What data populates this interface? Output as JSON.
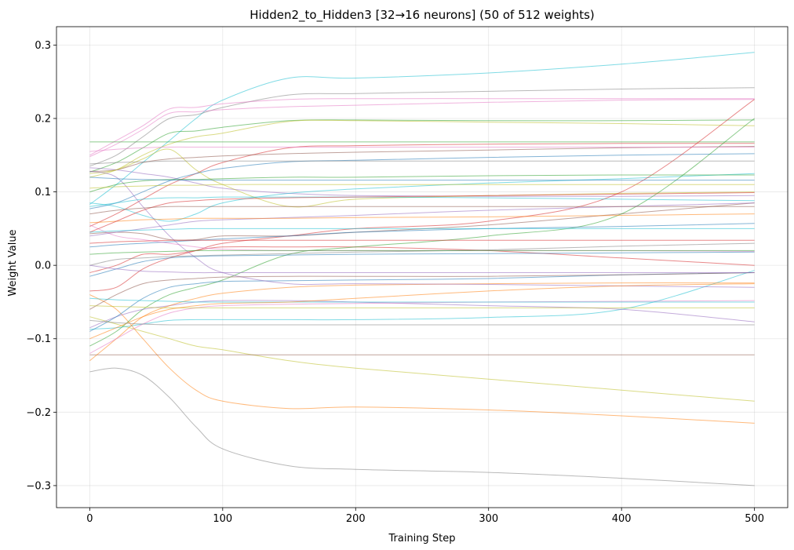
{
  "chart_data": {
    "type": "line",
    "title": "Hidden2_to_Hidden3 [32→16 neurons] (50 of 512 weights)",
    "xlabel": "Training Step",
    "ylabel": "Weight Value",
    "xlim": [
      -25,
      525
    ],
    "ylim": [
      -0.33,
      0.325
    ],
    "xticks": [
      0,
      100,
      200,
      300,
      400,
      500
    ],
    "xtick_labels": [
      "0",
      "100",
      "200",
      "300",
      "400",
      "500"
    ],
    "yticks": [
      -0.3,
      -0.2,
      -0.1,
      0.0,
      0.1,
      0.2,
      0.3
    ],
    "ytick_labels": [
      "−0.3",
      "−0.2",
      "−0.1",
      "0.0",
      "0.1",
      "0.2",
      "0.3"
    ],
    "grid": true,
    "x": [
      0,
      20,
      40,
      60,
      80,
      100,
      150,
      200,
      300,
      400,
      500
    ],
    "series": [
      {
        "color": "#17becf",
        "values": [
          0.083,
          0.11,
          0.14,
          0.17,
          0.2,
          0.225,
          0.255,
          0.255,
          0.262,
          0.274,
          0.29
        ]
      },
      {
        "color": "#7f7f7f",
        "values": [
          0.135,
          0.15,
          0.175,
          0.2,
          0.205,
          0.215,
          0.232,
          0.234,
          0.237,
          0.24,
          0.242
        ]
      },
      {
        "color": "#e377c2",
        "values": [
          0.15,
          0.17,
          0.19,
          0.213,
          0.215,
          0.22,
          0.226,
          0.227,
          0.227,
          0.227,
          0.227
        ]
      },
      {
        "color": "#e377c2",
        "values": [
          0.148,
          0.165,
          0.185,
          0.207,
          0.209,
          0.212,
          0.216,
          0.218,
          0.222,
          0.225,
          0.226
        ]
      },
      {
        "color": "#2ca02c",
        "values": [
          0.127,
          0.14,
          0.16,
          0.18,
          0.183,
          0.188,
          0.197,
          0.198,
          0.197,
          0.197,
          0.198
        ]
      },
      {
        "color": "#bcbd22",
        "values": [
          0.12,
          0.13,
          0.15,
          0.165,
          0.175,
          0.18,
          0.196,
          0.197,
          0.195,
          0.193,
          0.19
        ]
      },
      {
        "color": "#2ca02c",
        "values": [
          0.168,
          0.168,
          0.168,
          0.168,
          0.168,
          0.168,
          0.168,
          0.168,
          0.168,
          0.168,
          0.168
        ]
      },
      {
        "color": "#d62728",
        "values": [
          0.053,
          0.07,
          0.09,
          0.11,
          0.125,
          0.14,
          0.16,
          0.163,
          0.165,
          0.166,
          0.166
        ]
      },
      {
        "color": "#8c564b",
        "values": [
          0.128,
          0.13,
          0.14,
          0.145,
          0.147,
          0.149,
          0.152,
          0.154,
          0.157,
          0.16,
          0.162
        ]
      },
      {
        "color": "#1f77b4",
        "values": [
          0.077,
          0.085,
          0.1,
          0.115,
          0.125,
          0.132,
          0.141,
          0.143,
          0.147,
          0.15,
          0.152
        ]
      },
      {
        "color": "#9467bd",
        "values": [
          0.133,
          0.13,
          0.125,
          0.12,
          0.112,
          0.105,
          0.098,
          0.095,
          0.094,
          0.094,
          0.095
        ]
      },
      {
        "color": "#17becf",
        "values": [
          0.085,
          0.08,
          0.068,
          0.06,
          0.07,
          0.085,
          0.098,
          0.104,
          0.112,
          0.118,
          0.125
        ]
      },
      {
        "color": "#bcbd22",
        "values": [
          0.125,
          0.13,
          0.145,
          0.158,
          0.13,
          0.11,
          0.08,
          0.09,
          0.095,
          0.098,
          0.1
        ]
      },
      {
        "color": "#d62728",
        "values": [
          -0.01,
          0.0,
          0.015,
          0.015,
          0.02,
          0.025,
          0.025,
          0.025,
          0.02,
          0.01,
          0.0
        ]
      },
      {
        "color": "#8c564b",
        "values": [
          0.043,
          0.045,
          0.043,
          0.035,
          0.035,
          0.04,
          0.04,
          0.045,
          0.055,
          0.07,
          0.085
        ]
      },
      {
        "color": "#ff7f0e",
        "values": [
          -0.04,
          -0.06,
          -0.1,
          -0.14,
          -0.17,
          -0.185,
          -0.195,
          -0.193,
          -0.197,
          -0.205,
          -0.215
        ]
      },
      {
        "color": "#7f7f7f",
        "values": [
          -0.145,
          -0.14,
          -0.15,
          -0.18,
          -0.22,
          -0.25,
          -0.273,
          -0.278,
          -0.282,
          -0.29,
          -0.3
        ]
      },
      {
        "color": "#bcbd22",
        "values": [
          -0.07,
          -0.08,
          -0.09,
          -0.1,
          -0.11,
          -0.115,
          -0.13,
          -0.14,
          -0.155,
          -0.17,
          -0.185
        ]
      },
      {
        "color": "#8c564b",
        "values": [
          -0.122,
          -0.122,
          -0.122,
          -0.122,
          -0.122,
          -0.122,
          -0.122,
          -0.122,
          -0.122,
          -0.122,
          -0.122
        ]
      },
      {
        "color": "#d62728",
        "values": [
          -0.035,
          -0.03,
          -0.005,
          0.01,
          0.02,
          0.03,
          0.04,
          0.05,
          0.06,
          0.1,
          0.226
        ]
      },
      {
        "color": "#17becf",
        "values": [
          -0.087,
          -0.085,
          -0.08,
          -0.075,
          -0.074,
          -0.074,
          -0.074,
          -0.074,
          -0.071,
          -0.06,
          -0.007
        ]
      },
      {
        "color": "#2ca02c",
        "values": [
          -0.11,
          -0.09,
          -0.06,
          -0.04,
          -0.03,
          -0.02,
          0.015,
          0.025,
          0.04,
          0.07,
          0.2
        ]
      },
      {
        "color": "#9467bd",
        "values": [
          -0.085,
          -0.07,
          -0.06,
          -0.055,
          -0.05,
          -0.048,
          -0.048,
          -0.05,
          -0.055,
          -0.06,
          -0.077
        ]
      },
      {
        "color": "#ff7f0e",
        "values": [
          -0.13,
          -0.1,
          -0.07,
          -0.055,
          -0.045,
          -0.038,
          -0.03,
          -0.027,
          -0.025,
          -0.024,
          -0.024
        ]
      },
      {
        "color": "#1f77b4",
        "values": [
          -0.09,
          -0.07,
          -0.045,
          -0.03,
          -0.025,
          -0.022,
          -0.021,
          -0.02,
          -0.018,
          -0.013,
          -0.01
        ]
      },
      {
        "color": "#1f77b4",
        "values": [
          0.025,
          0.028,
          0.03,
          0.032,
          0.034,
          0.036,
          0.04,
          0.045,
          0.05,
          0.053,
          0.057
        ]
      },
      {
        "color": "#e377c2",
        "values": [
          0.055,
          0.04,
          0.035,
          0.03,
          0.025,
          0.022,
          0.02,
          0.02,
          0.02,
          0.02,
          0.019
        ]
      },
      {
        "color": "#7f7f7f",
        "values": [
          0.0,
          0.008,
          0.01,
          0.012,
          0.013,
          0.014,
          0.016,
          0.018,
          0.021,
          0.026,
          0.03
        ]
      },
      {
        "color": "#9467bd",
        "values": [
          0.128,
          0.12,
          0.08,
          0.04,
          0.01,
          -0.01,
          -0.025,
          -0.025,
          -0.026,
          -0.028,
          -0.03
        ]
      },
      {
        "color": "#9467bd",
        "values": [
          0.04,
          0.045,
          0.05,
          0.055,
          0.06,
          0.062,
          0.065,
          0.068,
          0.075,
          0.08,
          0.085
        ]
      },
      {
        "color": "#ff7f0e",
        "values": [
          0.058,
          0.06,
          0.062,
          0.063,
          0.064,
          0.064,
          0.064,
          0.065,
          0.066,
          0.068,
          0.07
        ]
      },
      {
        "color": "#17becf",
        "values": [
          0.08,
          0.085,
          0.09,
          0.092,
          0.092,
          0.093,
          0.093,
          0.093,
          0.092,
          0.09,
          0.088
        ]
      },
      {
        "color": "#2ca02c",
        "values": [
          0.1,
          0.11,
          0.115,
          0.117,
          0.117,
          0.118,
          0.12,
          0.12,
          0.122,
          0.123,
          0.123
        ]
      },
      {
        "color": "#bcbd22",
        "values": [
          0.105,
          0.107,
          0.108,
          0.109,
          0.109,
          0.11,
          0.11,
          0.11,
          0.11,
          0.11,
          0.11
        ]
      },
      {
        "color": "#d62728",
        "values": [
          0.045,
          0.06,
          0.075,
          0.085,
          0.088,
          0.09,
          0.092,
          0.093,
          0.095,
          0.097,
          0.099
        ]
      },
      {
        "color": "#7f7f7f",
        "values": [
          0.138,
          0.14,
          0.141,
          0.142,
          0.142,
          0.142,
          0.142,
          0.142,
          0.142,
          0.142,
          0.142
        ]
      },
      {
        "color": "#1f77b4",
        "values": [
          -0.015,
          -0.005,
          0.005,
          0.01,
          0.012,
          0.013,
          0.014,
          0.015,
          0.016,
          0.017,
          0.018
        ]
      },
      {
        "color": "#8c564b",
        "values": [
          -0.06,
          -0.04,
          -0.025,
          -0.02,
          -0.018,
          -0.016,
          -0.015,
          -0.015,
          -0.015,
          -0.013,
          -0.01
        ]
      },
      {
        "color": "#e377c2",
        "values": [
          -0.12,
          -0.1,
          -0.08,
          -0.065,
          -0.058,
          -0.055,
          -0.053,
          -0.052,
          -0.05,
          -0.049,
          -0.048
        ]
      },
      {
        "color": "#17becf",
        "values": [
          -0.045,
          -0.047,
          -0.048,
          -0.049,
          -0.05,
          -0.05,
          -0.05,
          -0.05,
          -0.05,
          -0.05,
          -0.05
        ]
      },
      {
        "color": "#bcbd22",
        "values": [
          -0.055,
          -0.056,
          -0.057,
          -0.058,
          -0.058,
          -0.058,
          -0.058,
          -0.058,
          -0.058,
          -0.058,
          -0.058
        ]
      },
      {
        "color": "#2ca02c",
        "values": [
          0.015,
          0.017,
          0.018,
          0.019,
          0.02,
          0.02,
          0.02,
          0.02,
          0.02,
          0.02,
          0.02
        ]
      },
      {
        "color": "#ff7f0e",
        "values": [
          -0.1,
          -0.085,
          -0.07,
          -0.06,
          -0.055,
          -0.052,
          -0.05,
          -0.045,
          -0.035,
          -0.028,
          -0.025
        ]
      },
      {
        "color": "#9467bd",
        "values": [
          0.0,
          -0.005,
          -0.008,
          -0.009,
          -0.01,
          -0.01,
          -0.01,
          -0.01,
          -0.01,
          -0.01,
          -0.01
        ]
      },
      {
        "color": "#1f77b4",
        "values": [
          0.12,
          0.118,
          0.117,
          0.116,
          0.116,
          0.116,
          0.116,
          0.116,
          0.116,
          0.116,
          0.116
        ]
      },
      {
        "color": "#d62728",
        "values": [
          0.03,
          0.032,
          0.033,
          0.034,
          0.034,
          0.034,
          0.034,
          0.034,
          0.034,
          0.034,
          0.034
        ]
      },
      {
        "color": "#8c564b",
        "values": [
          0.07,
          0.075,
          0.078,
          0.08,
          0.08,
          0.08,
          0.08,
          0.08,
          0.08,
          0.08,
          0.08
        ]
      },
      {
        "color": "#e377c2",
        "values": [
          0.155,
          0.158,
          0.16,
          0.161,
          0.161,
          0.161,
          0.161,
          0.161,
          0.161,
          0.161,
          0.161
        ]
      },
      {
        "color": "#7f7f7f",
        "values": [
          -0.075,
          -0.078,
          -0.08,
          -0.081,
          -0.081,
          -0.081,
          -0.081,
          -0.081,
          -0.081,
          -0.081,
          -0.081
        ]
      },
      {
        "color": "#17becf",
        "values": [
          0.045,
          0.047,
          0.048,
          0.049,
          0.05,
          0.05,
          0.05,
          0.05,
          0.05,
          0.05,
          0.05
        ]
      }
    ]
  }
}
